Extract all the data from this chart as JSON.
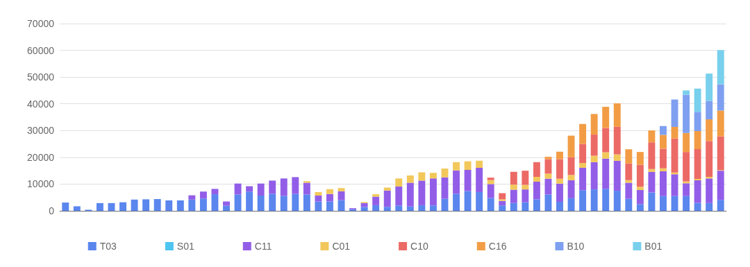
{
  "chart_data": {
    "type": "bar",
    "stacked": true,
    "categories": [
      null,
      null,
      null,
      null,
      null,
      null,
      null,
      null,
      null,
      null,
      null,
      null,
      null,
      null,
      null,
      null,
      null,
      null,
      null,
      null,
      null,
      null,
      null,
      null,
      null,
      null,
      null,
      null,
      null,
      null,
      null,
      null,
      null,
      null,
      null,
      null,
      null,
      null,
      null,
      null,
      null,
      null,
      null,
      null,
      null,
      null,
      null,
      null,
      null,
      null,
      null,
      null,
      null,
      null,
      null,
      null,
      null,
      null
    ],
    "series": [
      {
        "name": "T03",
        "color": "#5a86ee",
        "values": [
          3100,
          1700,
          400,
          2900,
          2900,
          3200,
          4200,
          4300,
          4400,
          3900,
          3900,
          4200,
          4600,
          6200,
          1900,
          6100,
          7200,
          5700,
          6400,
          5600,
          6300,
          6100,
          3500,
          3500,
          4000,
          600,
          1400,
          2100,
          1500,
          2000,
          1600,
          2100,
          2000,
          4500,
          6400,
          7400,
          7000,
          4800,
          2000,
          2900,
          3200,
          4300,
          6100,
          3400,
          4700,
          7700,
          8000,
          8200,
          7500,
          4500,
          2500,
          6900,
          5500,
          5500,
          5500,
          3000,
          2900,
          4100
        ]
      },
      {
        "name": "S01",
        "color": "#4dc5f0",
        "values": [
          null,
          null,
          null,
          null,
          null,
          null,
          null,
          null,
          null,
          null,
          null,
          null,
          null,
          null,
          null,
          null,
          null,
          null,
          null,
          null,
          null,
          null,
          null,
          null,
          null,
          null,
          null,
          null,
          null,
          null,
          null,
          null,
          null,
          null,
          null,
          null,
          null,
          null,
          null,
          null,
          null,
          null,
          null,
          null,
          null,
          null,
          null,
          null,
          null,
          null,
          null,
          null,
          null,
          null,
          null,
          null,
          null,
          null
        ]
      },
      {
        "name": "C11",
        "color": "#925ee8",
        "values": [
          null,
          null,
          null,
          null,
          null,
          null,
          null,
          null,
          null,
          null,
          null,
          1600,
          2600,
          2000,
          1600,
          4100,
          2000,
          4500,
          4900,
          6500,
          6300,
          4400,
          2200,
          2800,
          3300,
          400,
          1500,
          3200,
          6100,
          7100,
          8900,
          9200,
          10100,
          8000,
          8700,
          7900,
          9100,
          5200,
          1700,
          5000,
          4800,
          6600,
          5900,
          6800,
          6700,
          8400,
          10200,
          11300,
          11200,
          6000,
          5300,
          7700,
          9300,
          8200,
          4800,
          8400,
          9200,
          10900
        ]
      },
      {
        "name": "C01",
        "color": "#f2c85b",
        "values": [
          null,
          null,
          null,
          null,
          null,
          null,
          null,
          null,
          null,
          null,
          null,
          null,
          null,
          null,
          null,
          null,
          null,
          null,
          null,
          null,
          null,
          600,
          1300,
          1800,
          1200,
          null,
          400,
          900,
          1100,
          3000,
          2700,
          3100,
          2100,
          3300,
          3100,
          3200,
          2600,
          1500,
          600,
          1900,
          1700,
          1800,
          1900,
          1800,
          2000,
          1800,
          2400,
          2400,
          2400,
          1000,
          1200,
          1000,
          1100,
          600,
          700,
          500,
          600,
          200
        ]
      },
      {
        "name": "C10",
        "color": "#ec6a66",
        "values": [
          null,
          null,
          null,
          null,
          null,
          null,
          null,
          null,
          null,
          null,
          null,
          null,
          null,
          null,
          null,
          null,
          null,
          null,
          null,
          null,
          null,
          null,
          null,
          null,
          null,
          null,
          null,
          null,
          null,
          null,
          null,
          null,
          null,
          null,
          null,
          null,
          null,
          900,
          2300,
          4800,
          5300,
          5500,
          5400,
          7300,
          6600,
          7100,
          7900,
          9100,
          10300,
          6200,
          8200,
          10000,
          7300,
          12700,
          11000,
          11200,
          13400,
          12600
        ]
      },
      {
        "name": "C16",
        "color": "#f29d45",
        "values": [
          null,
          null,
          null,
          null,
          null,
          null,
          null,
          null,
          null,
          null,
          null,
          null,
          null,
          null,
          null,
          null,
          null,
          null,
          null,
          null,
          null,
          null,
          null,
          null,
          null,
          null,
          null,
          null,
          null,
          null,
          null,
          null,
          null,
          null,
          null,
          null,
          null,
          null,
          null,
          null,
          null,
          null,
          900,
          2800,
          8100,
          7500,
          7700,
          7900,
          8800,
          5300,
          4800,
          4500,
          5200,
          4400,
          7100,
          6700,
          8100,
          9700
        ]
      },
      {
        "name": "B10",
        "color": "#7fa0f0",
        "values": [
          null,
          null,
          null,
          null,
          null,
          null,
          null,
          null,
          null,
          null,
          null,
          null,
          null,
          null,
          null,
          null,
          null,
          null,
          null,
          null,
          null,
          null,
          null,
          null,
          null,
          null,
          null,
          null,
          null,
          null,
          null,
          null,
          null,
          null,
          null,
          null,
          null,
          null,
          null,
          null,
          null,
          null,
          null,
          null,
          null,
          null,
          null,
          null,
          null,
          null,
          null,
          null,
          3300,
          10200,
          14300,
          7200,
          6900,
          9800
        ]
      },
      {
        "name": "B01",
        "color": "#78d0ec",
        "values": [
          null,
          null,
          null,
          null,
          null,
          null,
          null,
          null,
          null,
          null,
          null,
          null,
          null,
          null,
          null,
          null,
          null,
          null,
          null,
          null,
          null,
          null,
          null,
          null,
          null,
          null,
          null,
          null,
          null,
          null,
          null,
          null,
          null,
          null,
          null,
          null,
          null,
          null,
          null,
          null,
          null,
          null,
          null,
          null,
          null,
          null,
          null,
          null,
          null,
          null,
          null,
          null,
          null,
          null,
          1600,
          8700,
          10200,
          12800
        ]
      }
    ],
    "ylim": [
      0,
      70000
    ],
    "yticks": [
      0,
      10000,
      20000,
      30000,
      40000,
      50000,
      60000,
      70000
    ],
    "grid": "y",
    "legend": "bottom"
  }
}
